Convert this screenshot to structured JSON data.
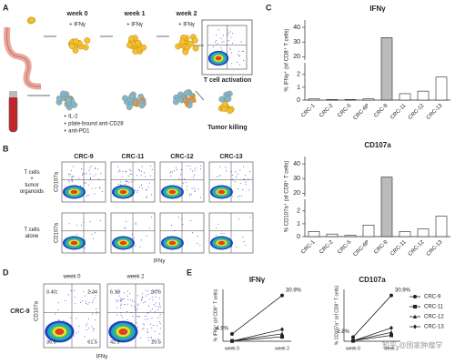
{
  "panel_a": {
    "label": "A",
    "weeks": [
      "week 0",
      "week 1",
      "week 2"
    ],
    "ifn": [
      "+ IFNγ",
      "+ IFNγ",
      "+ IFNγ"
    ],
    "treatments": [
      "+ IL-2",
      "+ plate-bound anti-CD28",
      "+ anti-PD1"
    ],
    "outcomes": [
      "T cell activation",
      "Tumor killing"
    ]
  },
  "panel_b": {
    "label": "B",
    "columns": [
      "CRC-9",
      "CRC-11",
      "CRC-12",
      "CRC-13"
    ],
    "rows": [
      [
        "T cells",
        "+",
        "tumor",
        "organoids"
      ],
      [
        "T cells",
        "alone"
      ]
    ],
    "y_axis": "CD107a",
    "x_axis": "IFNγ"
  },
  "panel_c": {
    "label": "C"
  },
  "panel_d": {
    "label": "D",
    "title": "CRC-9",
    "columns": [
      "week 0",
      "week 2"
    ],
    "y_axis": "CD107a",
    "x_axis": "IFNγ",
    "quadrants": [
      [
        "0.40",
        "2.34",
        "36.6",
        "61.5"
      ],
      [
        "6.10",
        "30.6",
        "42.9",
        "20.5"
      ]
    ]
  },
  "panel_e": {
    "label": "E"
  },
  "watermark": "知乎 @国家肿瘤学",
  "chart_data": [
    {
      "type": "bar",
      "title": "IFNγ",
      "y_label": "% IFNγ⁺ (of CD8⁺ T cells)",
      "categories": [
        "CRC-1",
        "CRC-2",
        "CRC-5",
        "CRC-6P",
        "CRC-9",
        "CRC-11",
        "CRC-12",
        "CRC-13"
      ],
      "values": [
        0.1,
        0.05,
        0.05,
        0.1,
        33,
        0.5,
        0.7,
        1.8
      ],
      "colors": [
        "#ffffff",
        "#ffffff",
        "#ffffff",
        "#ffffff",
        "#bbbbbb",
        "#ffffff",
        "#ffffff",
        "#ffffff"
      ],
      "ylim": [
        0,
        45
      ],
      "yticks": [
        0,
        1,
        2,
        20,
        30,
        40
      ],
      "axis_break": [
        2.5,
        15
      ]
    },
    {
      "type": "bar",
      "title": "CD107a",
      "y_label": "% CD107a⁺ (of CD8⁺ T cells)",
      "categories": [
        "CRC-1",
        "CRC-2",
        "CRC-5",
        "CRC-6P",
        "CRC-9",
        "CRC-11",
        "CRC-12",
        "CRC-13"
      ],
      "values": [
        0.4,
        0.2,
        0.1,
        0.9,
        31,
        0.4,
        0.6,
        1.6
      ],
      "colors": [
        "#ffffff",
        "#ffffff",
        "#ffffff",
        "#ffffff",
        "#bbbbbb",
        "#ffffff",
        "#ffffff",
        "#ffffff"
      ],
      "ylim": [
        0,
        45
      ],
      "yticks": [
        0,
        1,
        2,
        20,
        30,
        40
      ],
      "axis_break": [
        2.5,
        15
      ]
    },
    {
      "type": "line",
      "title": "IFNγ",
      "y_label": "% IFNγ⁺ (of CD8⁺ T cells)",
      "x": [
        "week 0",
        "week 2"
      ],
      "ylim": [
        0,
        35
      ],
      "series": [
        {
          "color": "#222222",
          "marker": "circle",
          "values": [
            4.9,
            30.9
          ],
          "value_labels": [
            "4.9%",
            "30.9%"
          ]
        },
        {
          "color": "#222222",
          "marker": "square",
          "values": [
            0.2,
            3
          ]
        },
        {
          "color": "#222222",
          "marker": "triangle",
          "values": [
            0.3,
            5
          ]
        },
        {
          "color": "#222222",
          "marker": "diamond",
          "values": [
            0.1,
            8
          ]
        }
      ]
    },
    {
      "type": "line",
      "title": "CD107a",
      "y_label": "% CD107a⁺ (of CD8⁺ T cells)",
      "x": [
        "week 0",
        "week 2"
      ],
      "ylim": [
        0,
        35
      ],
      "legend": "right",
      "series": [
        {
          "name": "CRC-9",
          "color": "#222222",
          "marker": "circle",
          "values": [
            2.8,
            30.9
          ],
          "value_labels": [
            "2.8%",
            "30.9%"
          ]
        },
        {
          "name": "CRC-11",
          "color": "#222222",
          "marker": "square",
          "values": [
            0.3,
            4
          ]
        },
        {
          "name": "CRC-12",
          "color": "#222222",
          "marker": "triangle",
          "values": [
            0.4,
            6
          ]
        },
        {
          "name": "CRC-13",
          "color": "#222222",
          "marker": "diamond",
          "values": [
            0.2,
            9
          ]
        }
      ]
    }
  ]
}
